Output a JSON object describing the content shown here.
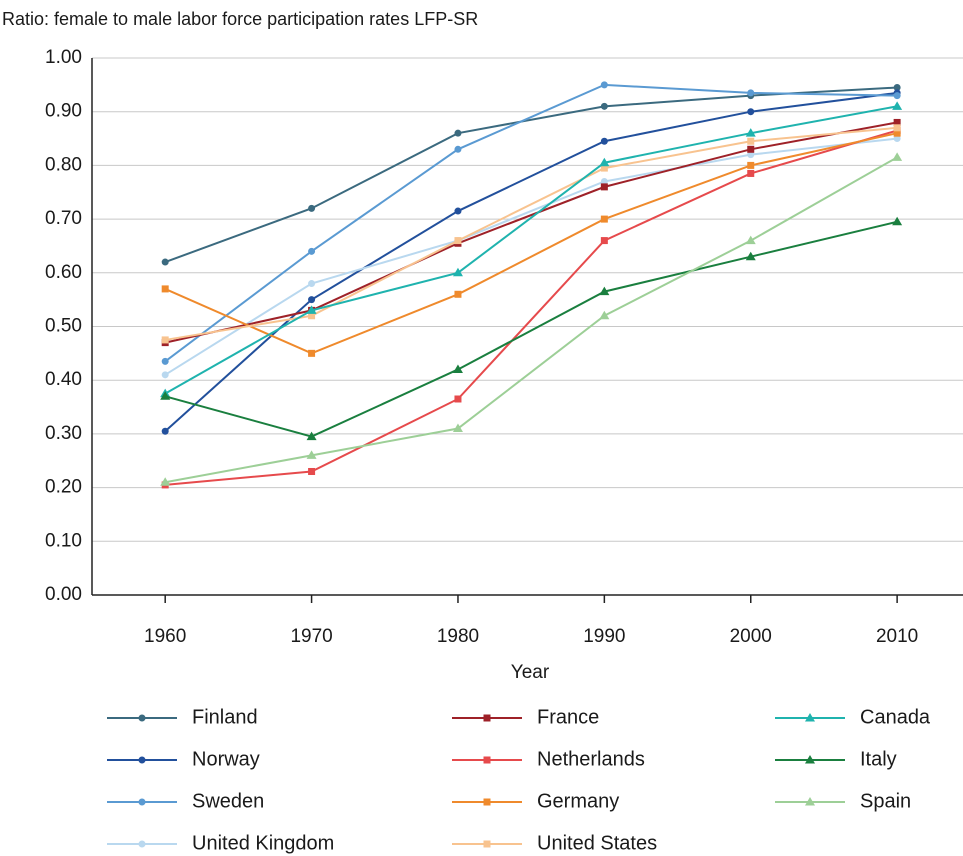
{
  "chart_data": {
    "type": "line",
    "title": "Ratio: female to male labor force participation rates LFP-SR",
    "xlabel": "Year",
    "x": [
      1960,
      1970,
      1980,
      1990,
      2000,
      2010
    ],
    "xlim": [
      1955,
      2014.5
    ],
    "xticks": [
      1960,
      1970,
      1980,
      1990,
      2000,
      2010
    ],
    "ylim": [
      0,
      1
    ],
    "yticks": [
      {
        "value": 0,
        "label": "0.00"
      },
      {
        "value": 0.1,
        "label": "0.10"
      },
      {
        "value": 0.2,
        "label": "0.20"
      },
      {
        "value": 0.3,
        "label": "0.30"
      },
      {
        "value": 0.4,
        "label": "0.40"
      },
      {
        "value": 0.5,
        "label": "0.50"
      },
      {
        "value": 0.6,
        "label": "0.60"
      },
      {
        "value": 0.7,
        "label": "0.70"
      },
      {
        "value": 0.8,
        "label": "0.80"
      },
      {
        "value": 0.9,
        "label": "0.90"
      },
      {
        "value": 1,
        "label": "1.00"
      }
    ],
    "grid": true,
    "legend": "bottom",
    "series": [
      {
        "name": "Finland",
        "color": "#3b6a7f",
        "marker": "circle",
        "values": [
          0.62,
          0.72,
          0.86,
          0.91,
          0.93,
          0.945
        ]
      },
      {
        "name": "Norway",
        "color": "#22509c",
        "marker": "circle",
        "values": [
          0.305,
          0.55,
          0.715,
          0.845,
          0.9,
          0.935
        ]
      },
      {
        "name": "Sweden",
        "color": "#5a9ad2",
        "marker": "circle",
        "values": [
          0.435,
          0.64,
          0.83,
          0.95,
          0.935,
          0.93
        ]
      },
      {
        "name": "United Kingdom",
        "color": "#b9d8ef",
        "marker": "circle",
        "values": [
          0.41,
          0.58,
          0.66,
          0.77,
          0.82,
          0.85
        ]
      },
      {
        "name": "France",
        "color": "#9e2128",
        "marker": "square",
        "values": [
          0.47,
          0.53,
          0.655,
          0.76,
          0.83,
          0.88
        ]
      },
      {
        "name": "Netherlands",
        "color": "#e64a4c",
        "marker": "square",
        "values": [
          0.205,
          0.23,
          0.365,
          0.66,
          0.785,
          0.865
        ]
      },
      {
        "name": "Germany",
        "color": "#ef8a2c",
        "marker": "square",
        "values": [
          0.57,
          0.45,
          0.56,
          0.7,
          0.8,
          0.86
        ]
      },
      {
        "name": "United States",
        "color": "#f8c38f",
        "marker": "square",
        "values": [
          0.475,
          0.52,
          0.66,
          0.795,
          0.845,
          0.87
        ]
      },
      {
        "name": "Canada",
        "color": "#1fb3ae",
        "marker": "triangle",
        "values": [
          0.375,
          0.53,
          0.6,
          0.805,
          0.86,
          0.91
        ]
      },
      {
        "name": "Italy",
        "color": "#1a7f3f",
        "marker": "triangle",
        "values": [
          0.37,
          0.295,
          0.42,
          0.565,
          0.63,
          0.695
        ]
      },
      {
        "name": "Spain",
        "color": "#9dcf97",
        "marker": "triangle",
        "values": [
          0.21,
          0.26,
          0.31,
          0.52,
          0.66,
          0.815
        ]
      }
    ]
  }
}
